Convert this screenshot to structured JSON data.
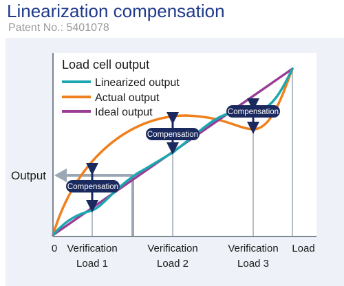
{
  "header": {
    "title": "Linearization compensation",
    "patent": "Patent No.: 5401078"
  },
  "diagram": {
    "inner_title": "Load cell output",
    "legend": [
      {
        "label": "Linearized output",
        "color": "#1aa7b0",
        "icon": "linearized-line"
      },
      {
        "label": "Actual output",
        "color": "#f0801e",
        "icon": "actual-line"
      },
      {
        "label": "Ideal output",
        "color": "#9a3d96",
        "icon": "ideal-line"
      }
    ],
    "compensation_label": "Compensation",
    "output_label": "Output",
    "x_labels": {
      "origin": "0",
      "v1_line1": "Verification",
      "v1_line2": "Load 1",
      "v2_line1": "Verification",
      "v2_line2": "Load 2",
      "v3_line1": "Verification",
      "v3_line2": "Load 3",
      "load": "Load"
    },
    "colors": {
      "badge": "#1b2a5e",
      "guide": "#9ba7b4",
      "axis": "#7d8793"
    }
  }
}
